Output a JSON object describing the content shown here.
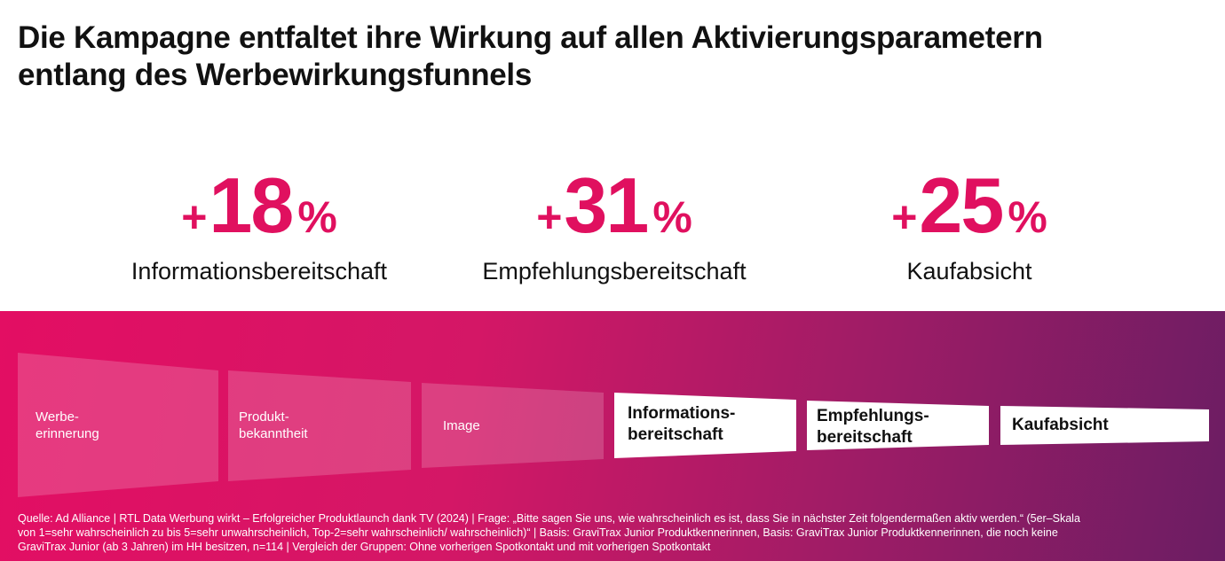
{
  "title": {
    "line1": "Die Kampagne entfaltet ihre Wirkung auf allen Aktivierungsparametern",
    "line2": "entlang des Werbewirkungsfunnels"
  },
  "kpis": [
    {
      "sign": "+",
      "number": "18",
      "unit": "%",
      "label": "Informationsbereitschaft"
    },
    {
      "sign": "+",
      "number": "31",
      "unit": "%",
      "label": "Empfehlungsbereitschaft"
    },
    {
      "sign": "+",
      "number": "25",
      "unit": "%",
      "label": "Kaufabsicht"
    }
  ],
  "funnel": [
    {
      "line1": "Werbe-",
      "line2": "erinnerung",
      "highlighted": false
    },
    {
      "line1": "Produkt-",
      "line2": "bekanntheit",
      "highlighted": false
    },
    {
      "line1": "Image",
      "line2": "",
      "highlighted": false
    },
    {
      "line1": "Informations-",
      "line2": "bereitschaft",
      "highlighted": true
    },
    {
      "line1": "Empfehlungs-",
      "line2": "bereitschaft",
      "highlighted": true
    },
    {
      "line1": "Kaufabsicht",
      "line2": "",
      "highlighted": true
    }
  ],
  "colors": {
    "accent": "#e0105f",
    "band_start": "#e30e63",
    "band_end": "#6b1d63",
    "highlight_fill": "#ffffff",
    "text_dark": "#111111"
  },
  "source": {
    "line1": "Quelle: Ad Alliance | RTL Data Werbung wirkt – Erfolgreicher Produktlaunch dank TV (2024) | Frage: „Bitte sagen Sie uns, wie wahrscheinlich es ist, dass Sie in nächster Zeit folgendermaßen aktiv werden.“ (5er–Skala",
    "line2": "von 1=sehr wahrscheinlich zu bis 5=sehr unwahrscheinlich, Top-2=sehr wahrscheinlich/ wahrscheinlich)“ | Basis: GraviTrax Junior Produktkennerinnen, Basis: GraviTrax Junior Produktkennerinnen, die noch keine",
    "line3": "GraviTrax Junior (ab 3 Jahren) im HH besitzen, n=114 | Vergleich der Gruppen: Ohne vorherigen Spotkontakt und mit vorherigen Spotkontakt"
  }
}
